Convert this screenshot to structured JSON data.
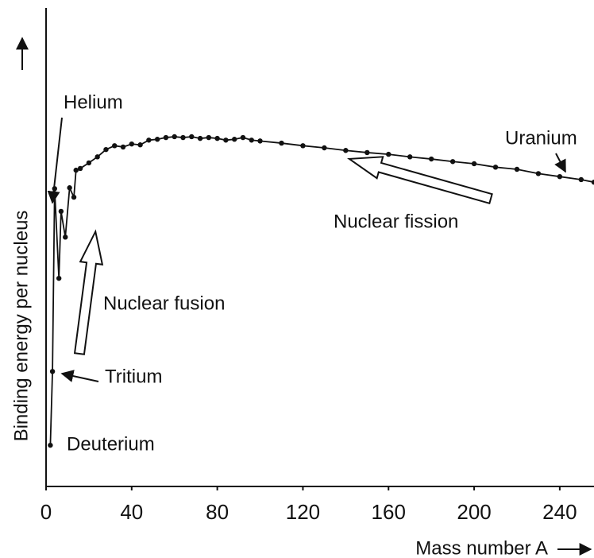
{
  "chart_data": {
    "type": "line",
    "x_label": "Mass number A",
    "y_label": "Binding energy per nucleus",
    "annotations": {
      "helium": "Helium",
      "uranium": "Uranium",
      "fission": "Nuclear fission",
      "fusion": "Nuclear fusion",
      "tritium": "Tritium",
      "deuterium": "Deuterium"
    },
    "x": [
      2,
      3,
      4,
      6,
      7,
      9,
      11,
      13,
      14,
      16,
      20,
      24,
      28,
      32,
      36,
      40,
      44,
      48,
      52,
      56,
      60,
      64,
      68,
      72,
      76,
      80,
      84,
      88,
      92,
      96,
      100,
      110,
      120,
      130,
      140,
      150,
      160,
      170,
      180,
      190,
      200,
      210,
      220,
      230,
      240,
      250,
      256
    ],
    "values": [
      1.11,
      2.83,
      7.09,
      5.0,
      6.56,
      5.96,
      7.11,
      6.89,
      7.52,
      7.56,
      7.69,
      7.83,
      8.0,
      8.09,
      8.06,
      8.13,
      8.11,
      8.22,
      8.24,
      8.28,
      8.3,
      8.28,
      8.3,
      8.26,
      8.28,
      8.26,
      8.22,
      8.24,
      8.28,
      8.22,
      8.2,
      8.15,
      8.09,
      8.04,
      7.98,
      7.93,
      7.89,
      7.83,
      7.78,
      7.72,
      7.67,
      7.59,
      7.54,
      7.44,
      7.37,
      7.3,
      7.24
    ],
    "color": "#111111",
    "xlim": [
      0,
      256
    ],
    "xticks": [
      0,
      40,
      80,
      120,
      160,
      200,
      240
    ],
    "ylim": [
      0.15,
      11.3
    ]
  }
}
